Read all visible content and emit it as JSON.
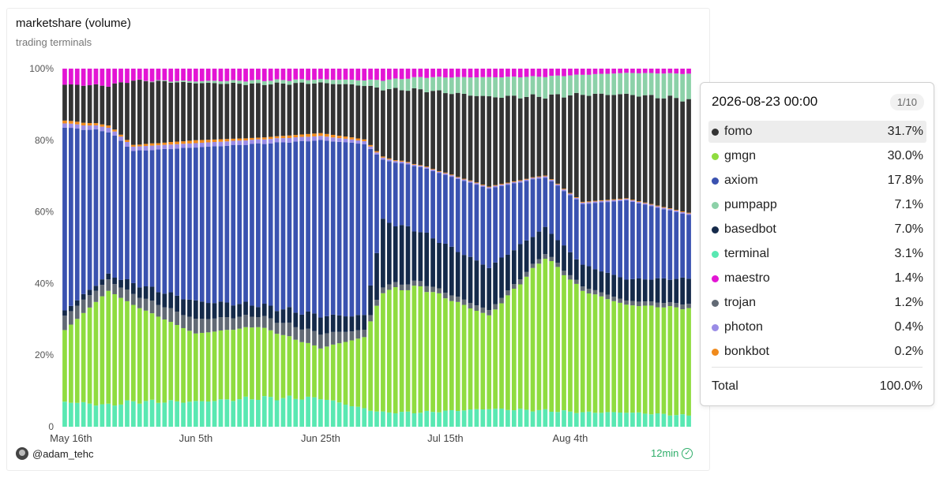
{
  "title": "marketshare (volume)",
  "subtitle": "trading terminals",
  "footer": {
    "author": "@adam_tehc",
    "freshness": "12min"
  },
  "tooltip": {
    "header": "2026-08-23 00:00",
    "page": "1/10",
    "items": [
      {
        "name": "fomo",
        "value": "31.7%",
        "color": "#333333"
      },
      {
        "name": "gmgn",
        "value": "30.0%",
        "color": "#8fdc3f"
      },
      {
        "name": "axiom",
        "value": "17.8%",
        "color": "#3a52b0"
      },
      {
        "name": "pumpapp",
        "value": "7.1%",
        "color": "#8cd1a8"
      },
      {
        "name": "basedbot",
        "value": "7.0%",
        "color": "#152a4a"
      },
      {
        "name": "terminal",
        "value": "3.1%",
        "color": "#59e8b2"
      },
      {
        "name": "maestro",
        "value": "1.4%",
        "color": "#e315d4"
      },
      {
        "name": "trojan",
        "value": "1.2%",
        "color": "#626a75"
      },
      {
        "name": "photon",
        "value": "0.4%",
        "color": "#9a8ce6"
      },
      {
        "name": "bonkbot",
        "value": "0.2%",
        "color": "#f08a1c"
      }
    ],
    "total_label": "Total",
    "total_value": "100.0%"
  },
  "chart_data": {
    "type": "bar",
    "stacked": true,
    "normalized": true,
    "x_start": "2026-05-15",
    "x_ticks": [
      "May 16th",
      "Jun 5th",
      "Jun 25th",
      "Jul 15th",
      "Aug 4th"
    ],
    "y_ticks": [
      "0",
      "20%",
      "40%",
      "60%",
      "80%",
      "100%"
    ],
    "ylim": [
      0,
      100
    ],
    "grid": false,
    "series_order": [
      "terminal",
      "gmgn",
      "trojan",
      "basedbot",
      "axiom",
      "photon",
      "bonkbot",
      "fomo",
      "pumpapp",
      "maestro"
    ],
    "anchors": [
      {
        "x": "2026-05-15",
        "terminal": 7,
        "gmgn": 20,
        "trojan": 4,
        "basedbot": 1.5,
        "axiom": 51,
        "photon": 1.2,
        "bonkbot": 0.8,
        "fomo": 10,
        "pumpapp": 0,
        "maestro": 4.5
      },
      {
        "x": "2026-05-22",
        "terminal": 6,
        "gmgn": 32,
        "trojan": 3,
        "basedbot": 1.5,
        "axiom": 40,
        "photon": 1.2,
        "bonkbot": 0.6,
        "fomo": 11,
        "pumpapp": 0,
        "maestro": 4.7
      },
      {
        "x": "2026-05-26",
        "terminal": 7,
        "gmgn": 27,
        "trojan": 3,
        "basedbot": 3,
        "axiom": 37,
        "photon": 1.2,
        "bonkbot": 0.5,
        "fomo": 18,
        "pumpapp": 0,
        "maestro": 3.3
      },
      {
        "x": "2026-06-05",
        "terminal": 7,
        "gmgn": 19,
        "trojan": 4,
        "basedbot": 5,
        "axiom": 43,
        "photon": 1.2,
        "bonkbot": 0.8,
        "fomo": 16,
        "pumpapp": 0.5,
        "maestro": 3.5
      },
      {
        "x": "2026-06-15",
        "terminal": 8,
        "gmgn": 20,
        "trojan": 3,
        "basedbot": 3,
        "axiom": 45,
        "photon": 1.2,
        "bonkbot": 0.5,
        "fomo": 15,
        "pumpapp": 1,
        "maestro": 3.3
      },
      {
        "x": "2026-06-25",
        "terminal": 8,
        "gmgn": 14,
        "trojan": 4,
        "basedbot": 5,
        "axiom": 49,
        "photon": 1.2,
        "bonkbot": 0.8,
        "fomo": 14,
        "pumpapp": 1,
        "maestro": 3
      },
      {
        "x": "2026-07-02",
        "terminal": 5,
        "gmgn": 20,
        "trojan": 2,
        "basedbot": 4,
        "axiom": 48,
        "photon": 0.8,
        "bonkbot": 0.5,
        "fomo": 15,
        "pumpapp": 1.5,
        "maestro": 3.2
      },
      {
        "x": "2026-07-05",
        "terminal": 4,
        "gmgn": 34,
        "trojan": 1.5,
        "basedbot": 18,
        "axiom": 17,
        "photon": 0.5,
        "bonkbot": 0.3,
        "fomo": 19,
        "pumpapp": 2.5,
        "maestro": 3.2
      },
      {
        "x": "2026-07-11",
        "terminal": 4,
        "gmgn": 35,
        "trojan": 1.5,
        "basedbot": 14,
        "axiom": 18,
        "photon": 0.4,
        "bonkbot": 0.2,
        "fomo": 21,
        "pumpapp": 3.5,
        "maestro": 2.4
      },
      {
        "x": "2026-07-22",
        "terminal": 5,
        "gmgn": 26,
        "trojan": 1.5,
        "basedbot": 12,
        "axiom": 22,
        "photon": 0.4,
        "bonkbot": 0.2,
        "fomo": 25,
        "pumpapp": 5.5,
        "maestro": 2.4
      },
      {
        "x": "2026-07-31",
        "terminal": 4.5,
        "gmgn": 43,
        "trojan": 1.2,
        "basedbot": 7,
        "axiom": 14,
        "photon": 0.4,
        "bonkbot": 0.2,
        "fomo": 22,
        "pumpapp": 5.5,
        "maestro": 2.2
      },
      {
        "x": "2026-08-06",
        "terminal": 4,
        "gmgn": 34,
        "trojan": 1.2,
        "basedbot": 6,
        "axiom": 17,
        "photon": 0.4,
        "bonkbot": 0.2,
        "fomo": 30,
        "pumpapp": 5.5,
        "maestro": 1.7
      },
      {
        "x": "2026-08-13",
        "terminal": 4,
        "gmgn": 30,
        "trojan": 1.2,
        "basedbot": 6,
        "axiom": 22,
        "photon": 0.4,
        "bonkbot": 0.2,
        "fomo": 29,
        "pumpapp": 6,
        "maestro": 1.2
      },
      {
        "x": "2026-08-23",
        "terminal": 3.1,
        "gmgn": 30.0,
        "trojan": 1.2,
        "basedbot": 7.0,
        "axiom": 17.8,
        "photon": 0.4,
        "bonkbot": 0.2,
        "fomo": 31.7,
        "pumpapp": 7.1,
        "maestro": 1.4
      }
    ]
  }
}
